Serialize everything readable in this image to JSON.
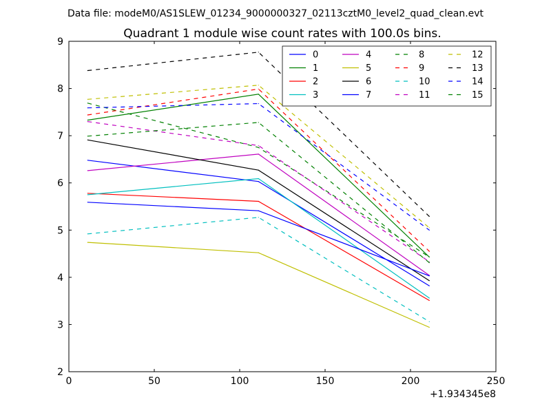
{
  "suptitle": "Data file: modeM0/AS1SLEW_01234_9000000327_02113cztM0_level2_quad_clean.evt",
  "chart_data": {
    "type": "line",
    "title": "Quadrant 1 module wise count rates with 100.0s bins.",
    "xlabel": "",
    "ylabel": "",
    "x_offset_label": "+1.934345e8",
    "xlim": [
      0,
      250
    ],
    "ylim": [
      2,
      9
    ],
    "xticks": [
      "0",
      "50",
      "100",
      "150",
      "200",
      "250"
    ],
    "yticks": [
      "2",
      "3",
      "4",
      "5",
      "6",
      "7",
      "8",
      "9"
    ],
    "grid": false,
    "legend_position": "top-right",
    "legend_columns": 4,
    "x": [
      11,
      111,
      211
    ],
    "series": [
      {
        "name": "0",
        "color": "#0000ff",
        "dash": "solid",
        "values": [
          6.48,
          6.03,
          3.82
        ]
      },
      {
        "name": "1",
        "color": "#008000",
        "dash": "solid",
        "values": [
          7.33,
          7.88,
          4.43
        ]
      },
      {
        "name": "2",
        "color": "#ff0000",
        "dash": "solid",
        "values": [
          5.78,
          5.61,
          3.51
        ]
      },
      {
        "name": "3",
        "color": "#00bfbf",
        "dash": "solid",
        "values": [
          5.75,
          6.09,
          3.56
        ]
      },
      {
        "name": "4",
        "color": "#bf00bf",
        "dash": "solid",
        "values": [
          6.26,
          6.61,
          4.04
        ]
      },
      {
        "name": "5",
        "color": "#bfbf00",
        "dash": "solid",
        "values": [
          4.74,
          4.52,
          2.94
        ]
      },
      {
        "name": "6",
        "color": "#000000",
        "dash": "solid",
        "values": [
          6.91,
          6.27,
          3.93
        ]
      },
      {
        "name": "7",
        "color": "#0000ff",
        "dash": "solid",
        "values": [
          5.59,
          5.41,
          4.03
        ]
      },
      {
        "name": "8",
        "color": "#008000",
        "dash": "dashed",
        "values": [
          7.69,
          6.75,
          4.43
        ]
      },
      {
        "name": "9",
        "color": "#ff0000",
        "dash": "dashed",
        "values": [
          7.44,
          7.99,
          4.55
        ]
      },
      {
        "name": "10",
        "color": "#00bfbf",
        "dash": "dashed",
        "values": [
          4.92,
          5.27,
          3.06
        ]
      },
      {
        "name": "11",
        "color": "#bf00bf",
        "dash": "dashed",
        "values": [
          7.3,
          6.79,
          4.33
        ]
      },
      {
        "name": "12",
        "color": "#bfbf00",
        "dash": "dashed",
        "values": [
          7.77,
          8.07,
          5.05
        ]
      },
      {
        "name": "13",
        "color": "#000000",
        "dash": "dashed",
        "values": [
          8.38,
          8.77,
          5.29
        ]
      },
      {
        "name": "14",
        "color": "#0000ff",
        "dash": "dashed",
        "values": [
          7.59,
          7.68,
          5.0
        ]
      },
      {
        "name": "15",
        "color": "#008000",
        "dash": "dashed",
        "values": [
          6.99,
          7.28,
          4.31
        ]
      }
    ]
  }
}
